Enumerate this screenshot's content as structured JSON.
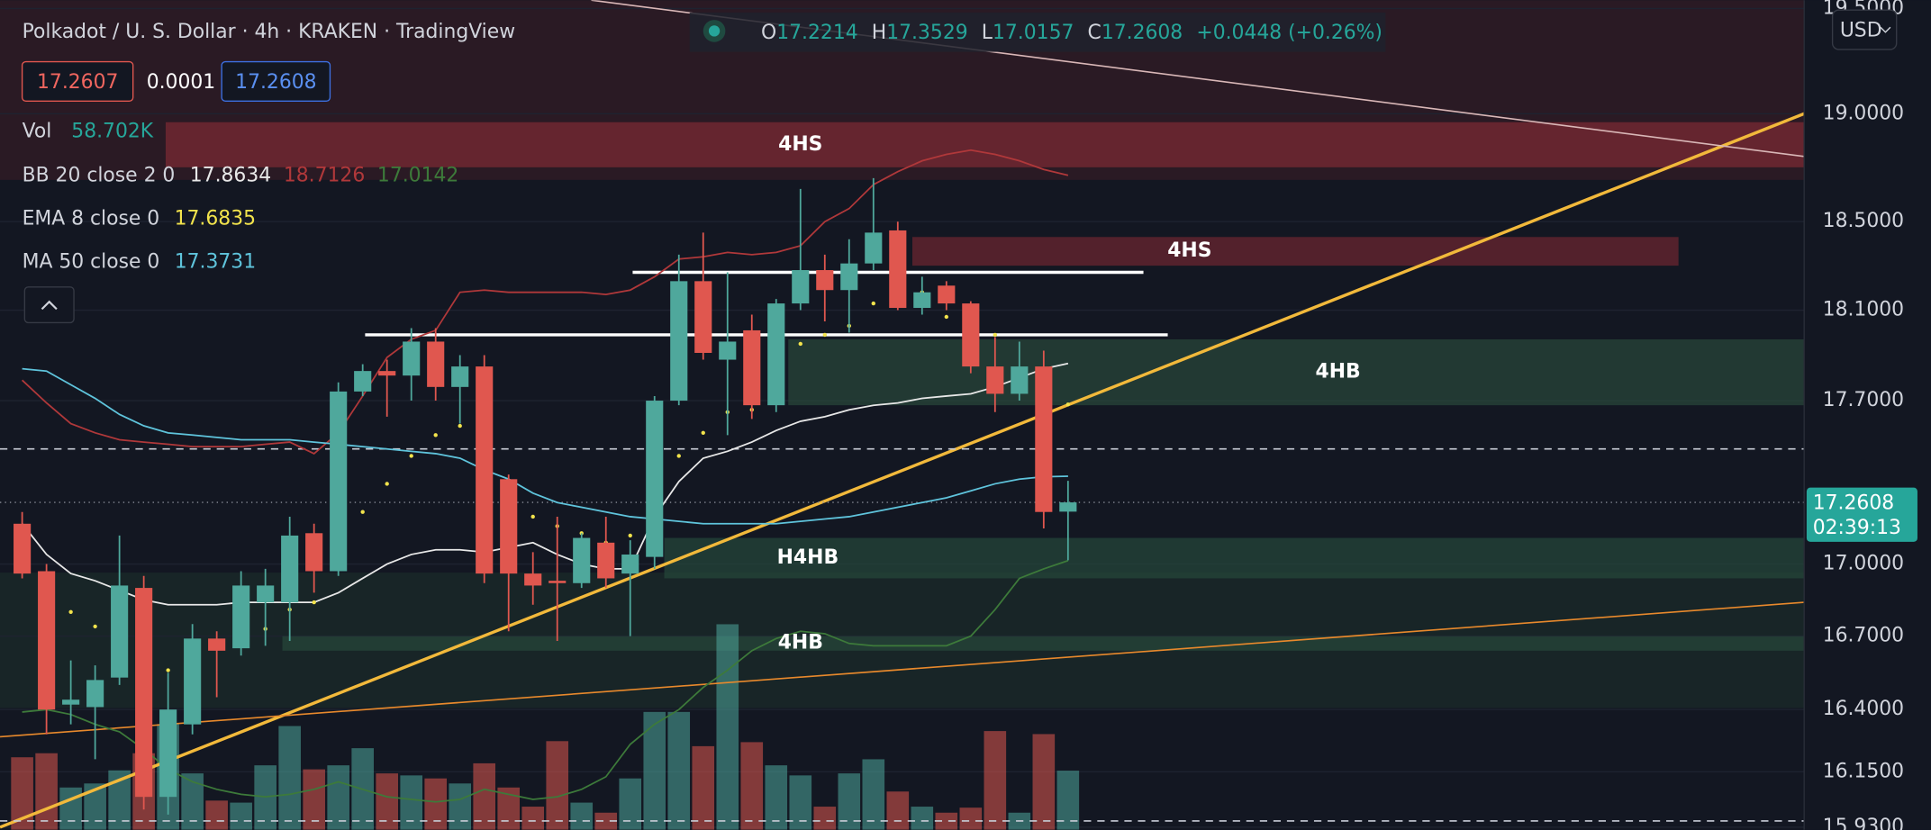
{
  "header": {
    "title": "Polkadot / U. S. Dollar · 4h · KRAKEN · TradingView",
    "ohlc_keys": [
      "O",
      "H",
      "L",
      "C"
    ],
    "change": "+0.0448 (+0.26%)",
    "bid": "17.2607",
    "spread": "0.0001",
    "ask": "17.2608",
    "volume_name": "Vol",
    "volume_label": "58.702K",
    "currency": "USD",
    "countdown": "02:39:13"
  },
  "chart_data": {
    "type": "candlestick",
    "log": true,
    "ylim": [
      15.92,
      19.54
    ],
    "yticks": [
      {
        "value": 19.5,
        "label": "19.5000"
      },
      {
        "value": 19.0,
        "label": "19.0000"
      },
      {
        "value": 18.5,
        "label": "18.5000"
      },
      {
        "value": 18.1,
        "label": "18.1000"
      },
      {
        "value": 17.7,
        "label": "17.7000"
      },
      {
        "value": 17.0,
        "label": "17.0000"
      },
      {
        "value": 16.7,
        "label": "16.7000"
      },
      {
        "value": 16.4,
        "label": "16.4000"
      },
      {
        "value": 16.15,
        "label": "16.1500"
      },
      {
        "value": 15.93,
        "label": "15.9300"
      }
    ],
    "up_color": "#4fa89c",
    "down_color": "#e0574f",
    "open": [
      17.17,
      16.97,
      16.42,
      16.41,
      16.53,
      16.9,
      16.05,
      16.34,
      16.69,
      16.65,
      16.84,
      16.84,
      17.13,
      16.97,
      17.74,
      17.83,
      17.81,
      17.96,
      17.76,
      17.85,
      17.36,
      16.96,
      16.93,
      16.92,
      17.09,
      16.96,
      17.03,
      17.7,
      18.23,
      17.88,
      18.01,
      17.68,
      18.13,
      18.28,
      18.19,
      18.31,
      18.46,
      18.11,
      18.21,
      18.13,
      17.85,
      17.73,
      17.85,
      17.2214
    ],
    "high": [
      17.22,
      17.0,
      16.6,
      16.58,
      17.12,
      16.95,
      16.55,
      16.75,
      16.72,
      16.97,
      16.98,
      17.2,
      17.17,
      17.78,
      17.86,
      17.88,
      18.02,
      18.02,
      17.9,
      17.9,
      17.38,
      17.05,
      17.2,
      17.13,
      17.2,
      17.1,
      17.72,
      18.35,
      18.45,
      18.27,
      18.08,
      18.15,
      18.65,
      18.35,
      18.42,
      18.7,
      18.5,
      18.25,
      18.23,
      18.14,
      17.98,
      17.96,
      17.92,
      17.3529
    ],
    "low": [
      16.94,
      16.3,
      16.34,
      16.2,
      16.5,
      16.0,
      15.98,
      16.3,
      16.45,
      16.62,
      16.66,
      16.68,
      16.88,
      16.95,
      17.72,
      17.63,
      17.7,
      17.7,
      17.6,
      16.92,
      16.72,
      16.83,
      16.68,
      16.9,
      16.9,
      16.7,
      16.98,
      17.68,
      17.88,
      17.55,
      17.62,
      17.65,
      18.1,
      18.05,
      18.0,
      18.28,
      18.1,
      18.08,
      18.1,
      17.82,
      17.65,
      17.7,
      17.15,
      17.0157
    ],
    "close": [
      16.96,
      16.4,
      16.44,
      16.52,
      16.91,
      16.05,
      16.4,
      16.69,
      16.64,
      16.91,
      16.91,
      17.12,
      16.97,
      17.74,
      17.83,
      17.81,
      17.96,
      17.76,
      17.85,
      16.96,
      16.96,
      16.91,
      16.92,
      17.11,
      16.94,
      17.04,
      17.7,
      18.23,
      17.91,
      17.96,
      17.68,
      18.13,
      18.28,
      18.19,
      18.31,
      18.45,
      18.11,
      18.18,
      18.13,
      17.85,
      17.73,
      17.85,
      17.22,
      17.2608
    ],
    "volume": [
      72,
      76,
      42,
      46,
      59,
      76,
      105,
      56,
      29,
      27,
      64,
      103,
      60,
      64,
      81,
      56,
      54,
      51,
      46,
      66,
      42,
      23,
      88,
      27,
      17,
      51,
      117,
      117,
      83,
      204,
      87,
      64,
      54,
      23,
      56,
      70,
      38,
      23,
      17,
      22,
      98,
      17,
      95,
      58.702
    ],
    "indicators": [
      {
        "name": "BB 20 close 2 0",
        "lines": [
          {
            "value_label": "17.8634",
            "color": "#e8e8e8",
            "values": [
              17.17,
              17.04,
              16.96,
              16.93,
              16.89,
              16.85,
              16.83,
              16.83,
              16.83,
              16.84,
              16.84,
              16.84,
              16.84,
              16.88,
              16.94,
              17.0,
              17.04,
              17.06,
              17.06,
              17.05,
              17.07,
              17.09,
              17.04,
              17.0,
              16.98,
              16.98,
              17.2,
              17.35,
              17.45,
              17.48,
              17.52,
              17.57,
              17.61,
              17.63,
              17.66,
              17.68,
              17.69,
              17.71,
              17.72,
              17.73,
              17.76,
              17.8,
              17.84,
              17.8634
            ]
          },
          {
            "value_label": "18.7126",
            "color": "#b0383a",
            "values": [
              17.79,
              17.69,
              17.6,
              17.56,
              17.53,
              17.52,
              17.51,
              17.5,
              17.5,
              17.5,
              17.51,
              17.52,
              17.47,
              17.56,
              17.72,
              17.89,
              17.97,
              18.01,
              18.18,
              18.19,
              18.18,
              18.18,
              18.18,
              18.18,
              18.17,
              18.19,
              18.25,
              18.33,
              18.34,
              18.36,
              18.35,
              18.36,
              18.39,
              18.5,
              18.56,
              18.67,
              18.73,
              18.78,
              18.81,
              18.83,
              18.81,
              18.78,
              18.74,
              18.7126
            ]
          },
          {
            "value_label": "17.0142",
            "color": "#3d7a3a",
            "values": [
              16.39,
              16.4,
              16.38,
              16.34,
              16.31,
              16.24,
              16.16,
              16.11,
              16.08,
              16.06,
              16.05,
              16.06,
              16.08,
              16.11,
              16.08,
              16.05,
              16.04,
              16.03,
              16.04,
              16.08,
              16.06,
              16.04,
              16.05,
              16.08,
              16.13,
              16.26,
              16.34,
              16.4,
              16.49,
              16.56,
              16.64,
              16.69,
              16.72,
              16.71,
              16.67,
              16.66,
              16.66,
              16.66,
              16.66,
              16.7,
              16.81,
              16.94,
              16.98,
              17.0142
            ]
          }
        ]
      },
      {
        "name": "EMA 8 close 0",
        "lines": [
          {
            "value_label": "17.6835",
            "color": "#f2e34c",
            "style": "dots",
            "values": [
              null,
              null,
              16.8,
              16.74,
              16.69,
              16.64,
              16.56,
              16.61,
              16.65,
              16.69,
              16.73,
              16.81,
              16.84,
              17.05,
              17.22,
              17.34,
              17.46,
              17.55,
              17.59,
              17.4,
              17.31,
              17.2,
              17.16,
              17.13,
              17.09,
              17.12,
              17.34,
              17.46,
              17.56,
              17.65,
              17.66,
              17.88,
              17.95,
              17.99,
              18.03,
              18.13,
              18.17,
              18.18,
              18.07,
              18.03,
              17.99,
              17.83,
              17.66,
              17.6835
            ]
          }
        ]
      },
      {
        "name": "MA 50 close 0",
        "lines": [
          {
            "value_label": "17.3731",
            "color": "#5fc4dc",
            "values": [
              17.84,
              17.83,
              17.77,
              17.71,
              17.64,
              17.59,
              17.56,
              17.55,
              17.54,
              17.53,
              17.53,
              17.53,
              17.52,
              17.51,
              17.5,
              17.49,
              17.48,
              17.47,
              17.45,
              17.4,
              17.36,
              17.3,
              17.26,
              17.24,
              17.22,
              17.2,
              17.19,
              17.18,
              17.17,
              17.17,
              17.17,
              17.17,
              17.18,
              17.19,
              17.2,
              17.22,
              17.24,
              17.26,
              17.28,
              17.31,
              17.34,
              17.36,
              17.37,
              17.3731
            ]
          }
        ]
      }
    ],
    "zones": [
      {
        "label": "4HS",
        "from": 18.75,
        "to": 18.96,
        "start": 5.9,
        "end": null,
        "color": "#7a2a33",
        "label_x": 32
      },
      {
        "label": "4HS",
        "from": 18.3,
        "to": 18.43,
        "start": 36.6,
        "end": 68.1,
        "color": "#6a2630",
        "label_x": 48
      },
      {
        "label": "4HB",
        "from": 17.68,
        "to": 17.97,
        "start": 31.5,
        "end": null,
        "color": "#28463a",
        "label_x": 54.1
      },
      {
        "label": "H4HB",
        "from": 16.94,
        "to": 17.11,
        "start": 26.4,
        "end": null,
        "color": "#244639",
        "label_x": 32.3
      },
      {
        "label": "4HB",
        "from": 16.64,
        "to": 16.7,
        "start": 10.7,
        "end": null,
        "color": "#26463a",
        "label_x": 32
      }
    ],
    "levels": [
      {
        "price": 17.99,
        "from": 14.1,
        "to": 47.1
      },
      {
        "price": 18.27,
        "from": 25.1,
        "to": 46.1
      }
    ],
    "dashed": [
      17.49,
      15.955
    ],
    "trendlines": [
      {
        "color": "#f2b93b",
        "width": 2.5,
        "points": [
          [
            -0.91,
            15.93
          ],
          [
            73.27,
            19.0
          ]
        ]
      },
      {
        "color": "#e8892c",
        "width": 1.2,
        "points": [
          [
            -0.91,
            16.29
          ],
          [
            73.27,
            16.84
          ]
        ]
      },
      {
        "color": "#d9b7b7",
        "width": 1.2,
        "points": [
          [
            23.4,
            19.54
          ],
          [
            73.27,
            18.8
          ]
        ]
      }
    ]
  }
}
